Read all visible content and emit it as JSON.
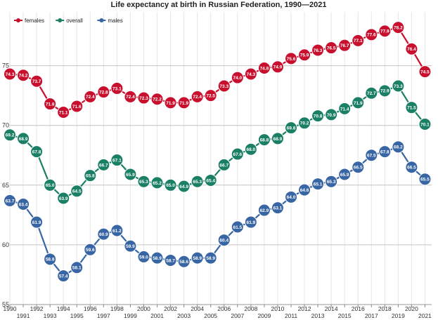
{
  "chart_data": {
    "type": "line",
    "title": "Life expectancy at birth in Russian Federation, 1990—2021",
    "xlabel": "",
    "ylabel": "",
    "x": [
      1990,
      1991,
      1992,
      1993,
      1994,
      1995,
      1996,
      1997,
      1998,
      1999,
      2000,
      2001,
      2002,
      2003,
      2004,
      2005,
      2006,
      2007,
      2008,
      2009,
      2010,
      2011,
      2012,
      2013,
      2014,
      2015,
      2016,
      2017,
      2018,
      2019,
      2020,
      2021
    ],
    "xlim": [
      1990,
      2021.5
    ],
    "ylim": [
      55,
      79.5
    ],
    "yticks": [
      55,
      60,
      65,
      70,
      75
    ],
    "grid": true,
    "legend_position": "top-left",
    "series": [
      {
        "name": "females",
        "color": "#c8102e",
        "values": [
          74.3,
          74.2,
          73.7,
          71.8,
          71.1,
          71.6,
          72.4,
          72.8,
          73.1,
          72.4,
          72.3,
          72.2,
          71.9,
          71.9,
          72.4,
          72.5,
          73.3,
          74.0,
          74.3,
          74.8,
          74.9,
          75.6,
          75.9,
          76.3,
          76.5,
          76.7,
          77.1,
          77.6,
          77.9,
          78.2,
          76.4,
          74.5
        ]
      },
      {
        "name": "overall",
        "color": "#1a7f64",
        "values": [
          69.2,
          68.9,
          67.8,
          65.0,
          63.9,
          64.5,
          65.8,
          66.7,
          67.1,
          65.9,
          65.3,
          65.2,
          65.0,
          64.9,
          65.3,
          65.4,
          66.7,
          67.6,
          68.0,
          68.8,
          68.9,
          69.8,
          70.2,
          70.8,
          70.9,
          71.4,
          71.9,
          72.7,
          72.9,
          73.3,
          71.5,
          70.1
        ]
      },
      {
        "name": "males",
        "color": "#3865a3",
        "values": [
          63.7,
          63.4,
          61.9,
          58.8,
          57.4,
          58.1,
          59.6,
          60.9,
          61.2,
          59.9,
          59.0,
          58.9,
          58.7,
          58.6,
          58.9,
          58.9,
          60.4,
          61.5,
          61.9,
          62.9,
          63.1,
          64.0,
          64.6,
          65.1,
          65.3,
          65.9,
          66.5,
          67.5,
          67.8,
          68.2,
          66.5,
          65.5
        ]
      }
    ]
  }
}
